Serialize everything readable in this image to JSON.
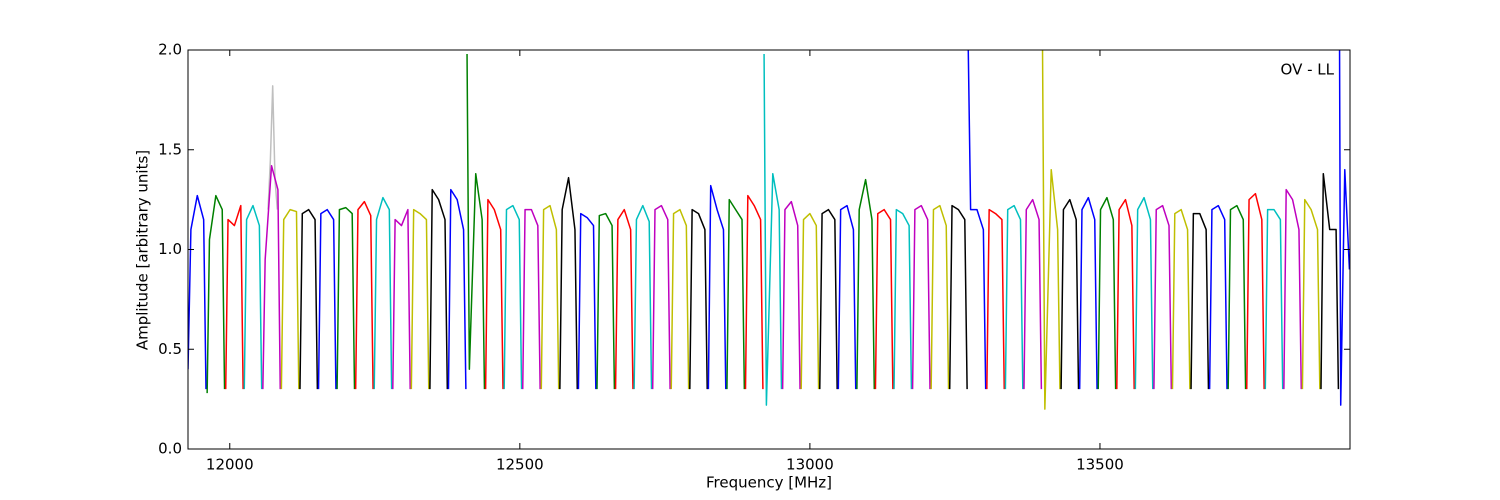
{
  "chart_data": {
    "type": "line",
    "xlabel": "Frequency [MHz]",
    "ylabel": "Amplitude [arbitrary units]",
    "annotation": "OV - LL",
    "xlim": [
      11928,
      13931
    ],
    "ylim": [
      0,
      2
    ],
    "xticks": [
      12000,
      12500,
      13000,
      13500
    ],
    "yticks": [
      {
        "value": 0,
        "label": "0.0"
      },
      0.5,
      {
        "value": 1,
        "label": "1.0"
      },
      1.5,
      {
        "value": 2,
        "label": "2.0"
      }
    ],
    "series": [
      {
        "color": "#bfbfbf",
        "x": [
          12066,
          12070,
          12074,
          12078,
          12082
        ],
        "values": [
          1.2,
          1.45,
          1.82,
          1.35,
          1.2
        ]
      },
      {
        "color": "#0000ff",
        "x": [
          11928,
          11933,
          11944,
          11955,
          11959
        ],
        "values": [
          0.4,
          1.1,
          1.27,
          1.15,
          0.3
        ]
      },
      {
        "color": "#008000",
        "x": [
          11961,
          11965,
          11976,
          11987,
          11991
        ],
        "values": [
          0.28,
          1.05,
          1.27,
          1.2,
          0.3
        ]
      },
      {
        "color": "#ff0000",
        "x": [
          11993,
          11997,
          12008,
          12019,
          12023
        ],
        "values": [
          0.3,
          1.15,
          1.12,
          1.22,
          0.3
        ]
      },
      {
        "color": "#00bfbf",
        "x": [
          12025,
          12029,
          12040,
          12051,
          12055
        ],
        "values": [
          0.3,
          1.15,
          1.22,
          1.12,
          0.3
        ]
      },
      {
        "color": "#bf00bf",
        "x": [
          12057,
          12061,
          12072,
          12083,
          12087
        ],
        "values": [
          0.3,
          0.95,
          1.42,
          1.3,
          0.3
        ]
      },
      {
        "color": "#bfbf00",
        "x": [
          12089,
          12093,
          12104,
          12115,
          12119
        ],
        "values": [
          0.3,
          1.15,
          1.2,
          1.19,
          0.3
        ]
      },
      {
        "color": "#000000",
        "x": [
          12121,
          12125,
          12136,
          12147,
          12151
        ],
        "values": [
          0.3,
          1.18,
          1.2,
          1.15,
          0.3
        ]
      },
      {
        "color": "#0000ff",
        "x": [
          12153,
          12157,
          12168,
          12179,
          12183
        ],
        "values": [
          0.3,
          1.18,
          1.2,
          1.15,
          0.3
        ]
      },
      {
        "color": "#008000",
        "x": [
          12185,
          12189,
          12200,
          12211,
          12215
        ],
        "values": [
          0.3,
          1.2,
          1.21,
          1.18,
          0.3
        ]
      },
      {
        "color": "#ff0000",
        "x": [
          12217,
          12221,
          12232,
          12243,
          12247
        ],
        "values": [
          0.3,
          1.2,
          1.24,
          1.17,
          0.3
        ]
      },
      {
        "color": "#00bfbf",
        "x": [
          12249,
          12253,
          12264,
          12275,
          12279
        ],
        "values": [
          0.3,
          1.15,
          1.26,
          1.2,
          0.3
        ]
      },
      {
        "color": "#bf00bf",
        "x": [
          12281,
          12285,
          12296,
          12307,
          12311
        ],
        "values": [
          0.3,
          1.15,
          1.12,
          1.2,
          0.3
        ]
      },
      {
        "color": "#bfbf00",
        "x": [
          12313,
          12317,
          12328,
          12339,
          12343
        ],
        "values": [
          0.3,
          1.2,
          1.18,
          1.15,
          0.3
        ]
      },
      {
        "color": "#000000",
        "x": [
          12345,
          12349,
          12360,
          12371,
          12375
        ],
        "values": [
          0.3,
          1.3,
          1.25,
          1.15,
          0.3
        ]
      },
      {
        "color": "#0000ff",
        "x": [
          12377,
          12381,
          12392,
          12403,
          12407
        ],
        "values": [
          0.3,
          1.3,
          1.25,
          1.1,
          0.3
        ]
      },
      {
        "color": "#008000",
        "x": [
          12409,
          12413,
          12424,
          12435,
          12439
        ],
        "values": [
          1.98,
          0.4,
          1.38,
          1.15,
          0.3
        ]
      },
      {
        "color": "#ff0000",
        "x": [
          12441,
          12445,
          12456,
          12467,
          12471
        ],
        "values": [
          0.3,
          1.25,
          1.2,
          1.1,
          0.3
        ]
      },
      {
        "color": "#00bfbf",
        "x": [
          12473,
          12477,
          12488,
          12499,
          12503
        ],
        "values": [
          0.3,
          1.2,
          1.22,
          1.15,
          0.3
        ]
      },
      {
        "color": "#bf00bf",
        "x": [
          12505,
          12509,
          12520,
          12531,
          12535
        ],
        "values": [
          0.3,
          1.2,
          1.2,
          1.12,
          0.3
        ]
      },
      {
        "color": "#bfbf00",
        "x": [
          12537,
          12541,
          12552,
          12563,
          12567
        ],
        "values": [
          0.3,
          1.2,
          1.22,
          1.1,
          0.3
        ]
      },
      {
        "color": "#000000",
        "x": [
          12569,
          12573,
          12584,
          12595,
          12599
        ],
        "values": [
          0.3,
          1.2,
          1.36,
          1.1,
          0.3
        ]
      },
      {
        "color": "#0000ff",
        "x": [
          12601,
          12605,
          12616,
          12627,
          12631
        ],
        "values": [
          0.3,
          1.18,
          1.16,
          1.12,
          0.3
        ]
      },
      {
        "color": "#008000",
        "x": [
          12633,
          12637,
          12648,
          12659,
          12663
        ],
        "values": [
          0.3,
          1.17,
          1.18,
          1.12,
          0.3
        ]
      },
      {
        "color": "#ff0000",
        "x": [
          12665,
          12669,
          12680,
          12691,
          12695
        ],
        "values": [
          0.3,
          1.15,
          1.2,
          1.1,
          0.3
        ]
      },
      {
        "color": "#00bfbf",
        "x": [
          12697,
          12701,
          12712,
          12723,
          12727
        ],
        "values": [
          0.3,
          1.15,
          1.22,
          1.14,
          0.3
        ]
      },
      {
        "color": "#bf00bf",
        "x": [
          12729,
          12733,
          12744,
          12755,
          12759
        ],
        "values": [
          0.3,
          1.2,
          1.22,
          1.15,
          0.3
        ]
      },
      {
        "color": "#bfbf00",
        "x": [
          12761,
          12765,
          12776,
          12787,
          12791
        ],
        "values": [
          0.3,
          1.18,
          1.2,
          1.12,
          0.3
        ]
      },
      {
        "color": "#000000",
        "x": [
          12793,
          12797,
          12808,
          12819,
          12823
        ],
        "values": [
          0.3,
          1.2,
          1.18,
          1.1,
          0.3
        ]
      },
      {
        "color": "#0000ff",
        "x": [
          12825,
          12829,
          12840,
          12851,
          12855
        ],
        "values": [
          0.3,
          1.32,
          1.2,
          1.1,
          0.3
        ]
      },
      {
        "color": "#008000",
        "x": [
          12857,
          12861,
          12872,
          12883,
          12887
        ],
        "values": [
          0.3,
          1.25,
          1.2,
          1.15,
          0.3
        ]
      },
      {
        "color": "#ff0000",
        "x": [
          12889,
          12893,
          12904,
          12915,
          12919
        ],
        "values": [
          0.3,
          1.27,
          1.22,
          1.15,
          0.3
        ]
      },
      {
        "color": "#00bfbf",
        "x": [
          12921,
          12925,
          12936,
          12947,
          12951
        ],
        "values": [
          1.98,
          0.22,
          1.38,
          1.2,
          0.3
        ]
      },
      {
        "color": "#bf00bf",
        "x": [
          12953,
          12957,
          12968,
          12979,
          12983
        ],
        "values": [
          0.3,
          1.2,
          1.24,
          1.12,
          0.3
        ]
      },
      {
        "color": "#bfbf00",
        "x": [
          12985,
          12989,
          13000,
          13011,
          13015
        ],
        "values": [
          0.3,
          1.15,
          1.18,
          1.12,
          0.3
        ]
      },
      {
        "color": "#000000",
        "x": [
          13017,
          13021,
          13032,
          13043,
          13047
        ],
        "values": [
          0.3,
          1.18,
          1.2,
          1.15,
          0.3
        ]
      },
      {
        "color": "#0000ff",
        "x": [
          13049,
          13053,
          13064,
          13075,
          13079
        ],
        "values": [
          0.3,
          1.2,
          1.22,
          1.1,
          0.3
        ]
      },
      {
        "color": "#008000",
        "x": [
          13081,
          13085,
          13096,
          13107,
          13111
        ],
        "values": [
          0.3,
          1.2,
          1.35,
          1.15,
          0.3
        ]
      },
      {
        "color": "#ff0000",
        "x": [
          13113,
          13117,
          13128,
          13139,
          13143
        ],
        "values": [
          0.3,
          1.18,
          1.2,
          1.15,
          0.3
        ]
      },
      {
        "color": "#00bfbf",
        "x": [
          13145,
          13149,
          13160,
          13171,
          13175
        ],
        "values": [
          0.3,
          1.2,
          1.18,
          1.12,
          0.3
        ]
      },
      {
        "color": "#bf00bf",
        "x": [
          13177,
          13181,
          13192,
          13203,
          13207
        ],
        "values": [
          0.3,
          1.2,
          1.22,
          1.15,
          0.3
        ]
      },
      {
        "color": "#bfbf00",
        "x": [
          13209,
          13213,
          13224,
          13235,
          13239
        ],
        "values": [
          0.3,
          1.2,
          1.22,
          1.12,
          0.3
        ]
      },
      {
        "color": "#000000",
        "x": [
          13241,
          13245,
          13256,
          13267,
          13271
        ],
        "values": [
          0.3,
          1.22,
          1.2,
          1.15,
          0.3
        ]
      },
      {
        "color": "#0000ff",
        "x": [
          13273,
          13277,
          13288,
          13299,
          13303
        ],
        "values": [
          2.0,
          1.2,
          1.2,
          1.1,
          0.3
        ]
      },
      {
        "color": "#ff0000",
        "x": [
          13305,
          13309,
          13320,
          13331,
          13335
        ],
        "values": [
          0.3,
          1.2,
          1.18,
          1.15,
          0.3
        ]
      },
      {
        "color": "#00bfbf",
        "x": [
          13337,
          13341,
          13352,
          13363,
          13367
        ],
        "values": [
          0.3,
          1.2,
          1.22,
          1.15,
          0.3
        ]
      },
      {
        "color": "#bf00bf",
        "x": [
          13369,
          13373,
          13384,
          13395,
          13399
        ],
        "values": [
          0.3,
          1.2,
          1.25,
          1.15,
          0.3
        ]
      },
      {
        "color": "#bfbf00",
        "x": [
          13401,
          13405,
          13416,
          13427,
          13431
        ],
        "values": [
          2.0,
          0.2,
          1.4,
          1.1,
          0.3
        ]
      },
      {
        "color": "#000000",
        "x": [
          13433,
          13437,
          13448,
          13459,
          13463
        ],
        "values": [
          0.3,
          1.2,
          1.25,
          1.15,
          0.3
        ]
      },
      {
        "color": "#0000ff",
        "x": [
          13465,
          13469,
          13480,
          13491,
          13495
        ],
        "values": [
          0.3,
          1.2,
          1.26,
          1.15,
          0.3
        ]
      },
      {
        "color": "#008000",
        "x": [
          13497,
          13501,
          13512,
          13523,
          13527
        ],
        "values": [
          0.3,
          1.2,
          1.26,
          1.15,
          0.3
        ]
      },
      {
        "color": "#ff0000",
        "x": [
          13529,
          13533,
          13544,
          13555,
          13559
        ],
        "values": [
          0.3,
          1.2,
          1.25,
          1.12,
          0.3
        ]
      },
      {
        "color": "#00bfbf",
        "x": [
          13561,
          13565,
          13576,
          13587,
          13591
        ],
        "values": [
          0.3,
          1.2,
          1.26,
          1.15,
          0.3
        ]
      },
      {
        "color": "#bf00bf",
        "x": [
          13593,
          13597,
          13608,
          13619,
          13623
        ],
        "values": [
          0.3,
          1.2,
          1.22,
          1.12,
          0.3
        ]
      },
      {
        "color": "#bfbf00",
        "x": [
          13625,
          13629,
          13640,
          13651,
          13655
        ],
        "values": [
          0.3,
          1.18,
          1.2,
          1.1,
          0.3
        ]
      },
      {
        "color": "#000000",
        "x": [
          13657,
          13661,
          13672,
          13683,
          13687
        ],
        "values": [
          0.3,
          1.18,
          1.18,
          1.1,
          0.3
        ]
      },
      {
        "color": "#0000ff",
        "x": [
          13689,
          13693,
          13704,
          13715,
          13719
        ],
        "values": [
          0.3,
          1.2,
          1.22,
          1.15,
          0.3
        ]
      },
      {
        "color": "#008000",
        "x": [
          13721,
          13725,
          13736,
          13747,
          13751
        ],
        "values": [
          0.3,
          1.2,
          1.22,
          1.15,
          0.3
        ]
      },
      {
        "color": "#ff0000",
        "x": [
          13753,
          13757,
          13768,
          13779,
          13783
        ],
        "values": [
          0.3,
          1.25,
          1.28,
          1.15,
          0.3
        ]
      },
      {
        "color": "#00bfbf",
        "x": [
          13785,
          13789,
          13800,
          13811,
          13815
        ],
        "values": [
          0.3,
          1.2,
          1.2,
          1.15,
          0.3
        ]
      },
      {
        "color": "#bf00bf",
        "x": [
          13817,
          13821,
          13832,
          13843,
          13847
        ],
        "values": [
          0.3,
          1.3,
          1.25,
          1.1,
          0.3
        ]
      },
      {
        "color": "#bfbf00",
        "x": [
          13849,
          13853,
          13864,
          13875,
          13879
        ],
        "values": [
          0.3,
          1.25,
          1.2,
          1.1,
          0.3
        ]
      },
      {
        "color": "#000000",
        "x": [
          13881,
          13885,
          13896,
          13907,
          13911
        ],
        "values": [
          0.3,
          1.38,
          1.1,
          1.1,
          0.3
        ]
      },
      {
        "color": "#0000ff",
        "x": [
          13913,
          13915,
          13922,
          13930
        ],
        "values": [
          2.0,
          0.22,
          1.4,
          0.9
        ]
      }
    ]
  }
}
